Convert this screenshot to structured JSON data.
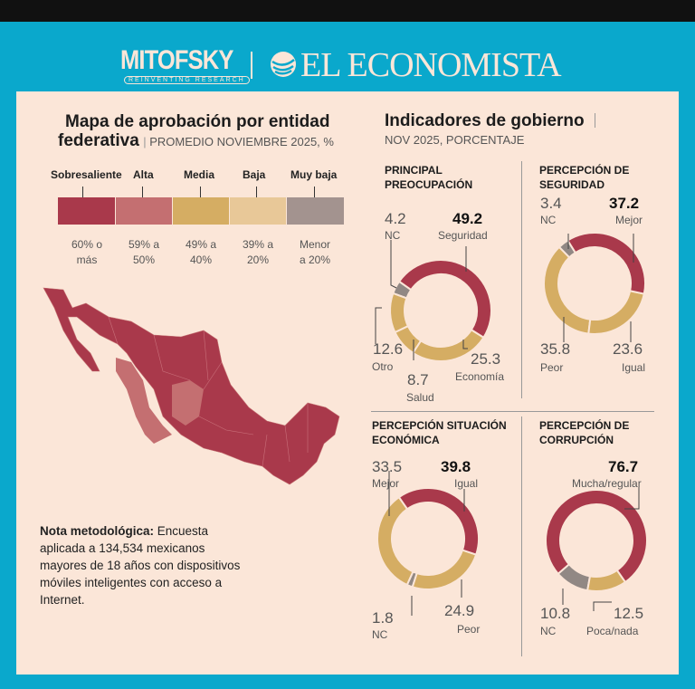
{
  "header": {
    "logo_left": "MITOFSKY",
    "logo_left_tagline": "REINVENTING RESEARCH",
    "logo_right": "EL ECONOMISTA"
  },
  "map_section": {
    "title_line1": "Mapa de aprobación por entidad",
    "title_line2": "federativa",
    "subtitle": "PROMEDIO NOVIEMBRE 2025, %",
    "legend": [
      {
        "label": "Sobresaliente",
        "range_line1": "60% o",
        "range_line2": "más",
        "color": "#a9394b"
      },
      {
        "label": "Alta",
        "range_line1": "59% a",
        "range_line2": "50%",
        "color": "#c46f71"
      },
      {
        "label": "Media",
        "range_line1": "49% a",
        "range_line2": "40%",
        "color": "#d5ad63"
      },
      {
        "label": "Baja",
        "range_line1": "39% a",
        "range_line2": "20%",
        "color": "#e8c898"
      },
      {
        "label": "Muy baja",
        "range_line1": "Menor",
        "range_line2": "a 20%",
        "color": "#a3938f"
      }
    ],
    "note_label": "Nota metodológica:",
    "note_text": " Encuesta aplicada a 134,534 mexicanos mayores de 18 años con dispositivos móviles inteligentes con acceso a Internet."
  },
  "indicators": {
    "title": "Indicadores de gobierno",
    "subtitle": "NOV 2025, PORCENTAJE"
  },
  "chart_data": [
    {
      "type": "pie",
      "title_line1": "PRINCIPAL",
      "title_line2": "PREOCUPACIÓN",
      "start_angle": -55,
      "slices": [
        {
          "label": "Seguridad",
          "value": 49.2,
          "color": "#a9394b"
        },
        {
          "label": "Economía",
          "value": 25.3,
          "color": "#d5ad63"
        },
        {
          "label": "Salud",
          "value": 8.7,
          "color": "#d5ad63"
        },
        {
          "label": "Otro",
          "value": 12.6,
          "color": "#d5ad63"
        },
        {
          "label": "NC",
          "value": 4.2,
          "color": "#918884"
        }
      ]
    },
    {
      "type": "pie",
      "title_line1": "PERCEPCIÓN DE",
      "title_line2": "SEGURIDAD",
      "start_angle": -32,
      "slices": [
        {
          "label": "Mejor",
          "value": 37.2,
          "color": "#a9394b"
        },
        {
          "label": "Igual",
          "value": 23.6,
          "color": "#d5ad63"
        },
        {
          "label": "Peor",
          "value": 35.8,
          "color": "#d5ad63"
        },
        {
          "label": "NC",
          "value": 3.4,
          "color": "#918884"
        }
      ]
    },
    {
      "type": "pie",
      "title_line1": "PERCEPCIÓN SITUACIÓN",
      "title_line2": "ECONÓMICA",
      "start_angle": -35,
      "slices": [
        {
          "label": "Igual",
          "value": 39.8,
          "color": "#a9394b"
        },
        {
          "label": "Peor",
          "value": 24.9,
          "color": "#d5ad63"
        },
        {
          "label": "NC",
          "value": 1.8,
          "color": "#918884"
        },
        {
          "label": "Mejor",
          "value": 33.5,
          "color": "#d5ad63"
        }
      ]
    },
    {
      "type": "pie",
      "title_line1": "PERCEPCIÓN DE",
      "title_line2": "CORRUPCIÓN",
      "start_angle": -131,
      "slices": [
        {
          "label": "Mucha/regular",
          "value": 76.7,
          "color": "#a9394b"
        },
        {
          "label": "Poca/nada",
          "value": 12.5,
          "color": "#d5ad63"
        },
        {
          "label": "NC",
          "value": 10.8,
          "color": "#918884"
        }
      ]
    }
  ]
}
